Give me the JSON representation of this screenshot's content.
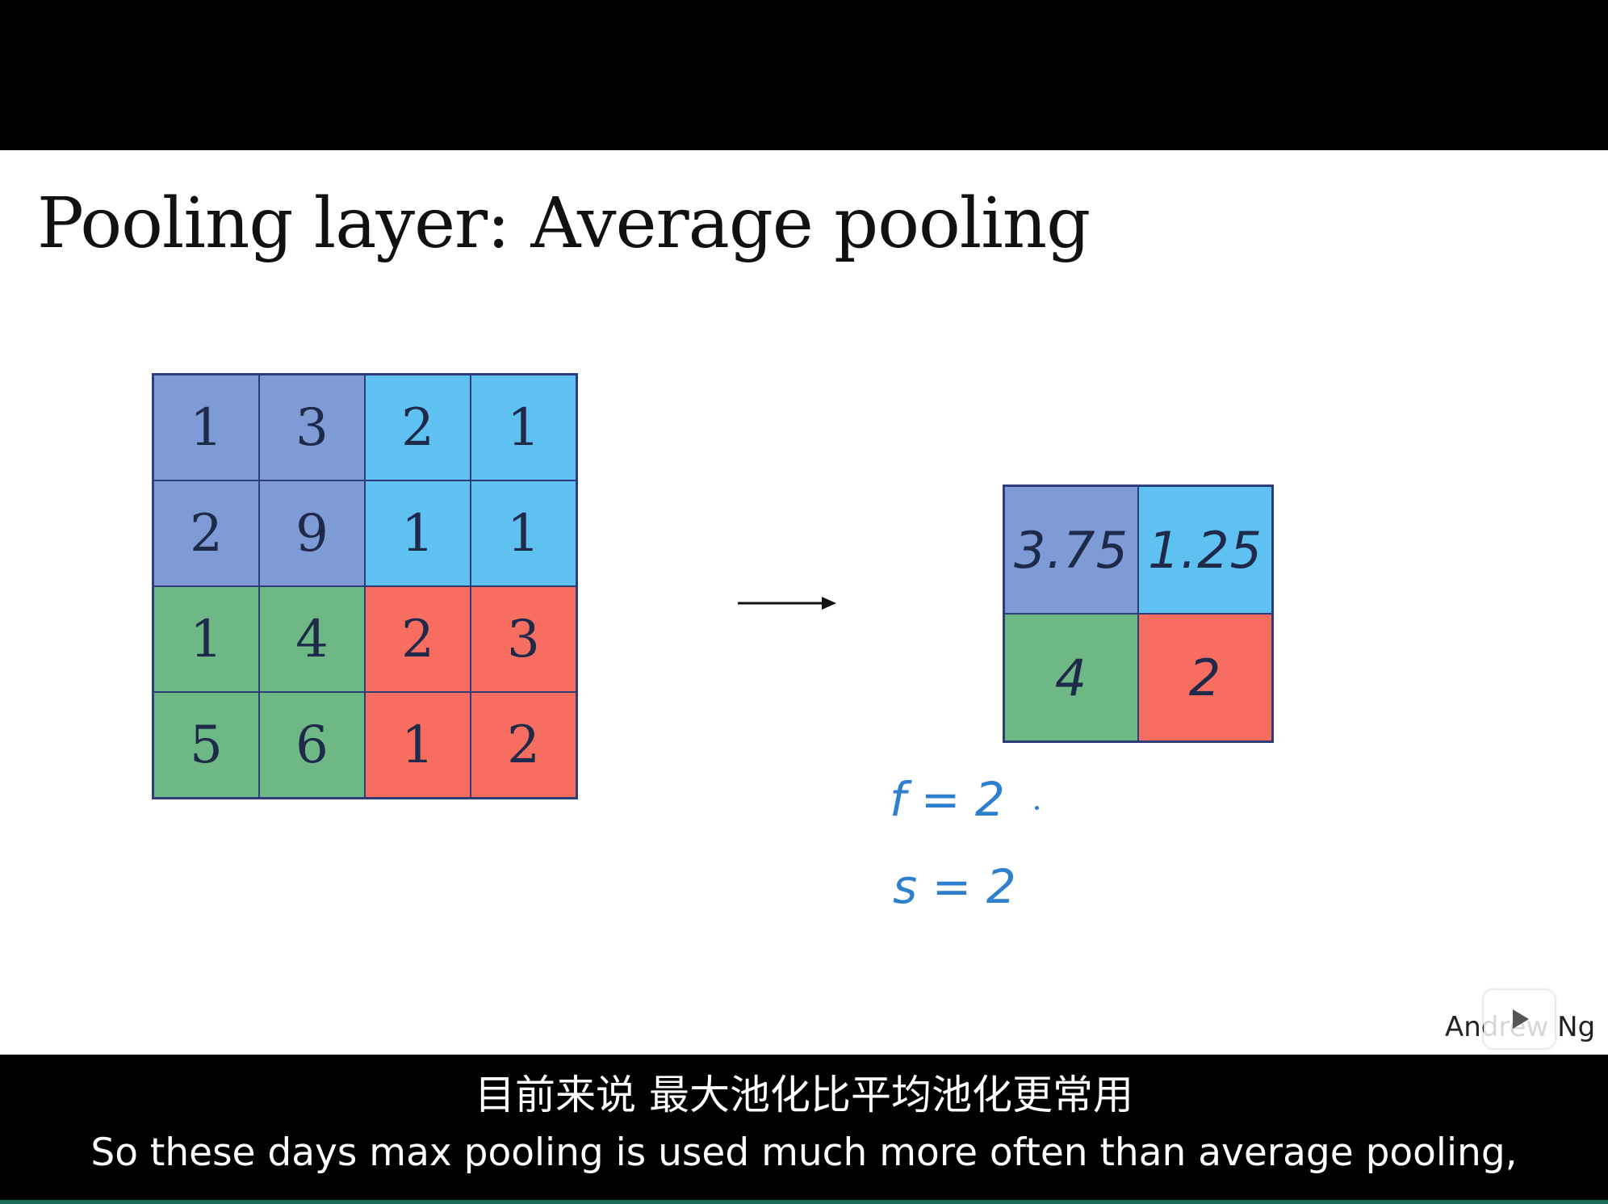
{
  "slide": {
    "title": "Pooling layer: Average pooling",
    "input_matrix": [
      [
        "1",
        "3",
        "2",
        "1"
      ],
      [
        "2",
        "9",
        "1",
        "1"
      ],
      [
        "1",
        "4",
        "2",
        "3"
      ],
      [
        "5",
        "6",
        "1",
        "2"
      ]
    ],
    "output_matrix": [
      [
        "3.75",
        "1.25"
      ],
      [
        "4",
        "2"
      ]
    ],
    "params": {
      "f": "f = 2",
      "s": "s = 2"
    },
    "signature": "Andrew Ng",
    "region_colors": {
      "top_left": "#7f9bd6",
      "top_right": "#5ec1f2",
      "bottom_left": "#6db884",
      "bottom_right": "#f76e61"
    },
    "icons": [
      "right-arrow-icon",
      "play-icon"
    ]
  },
  "subtitles": {
    "zh": "目前来说 最大池化比平均池化更常用",
    "en": "So these days max pooling is used much more often than average pooling,"
  }
}
